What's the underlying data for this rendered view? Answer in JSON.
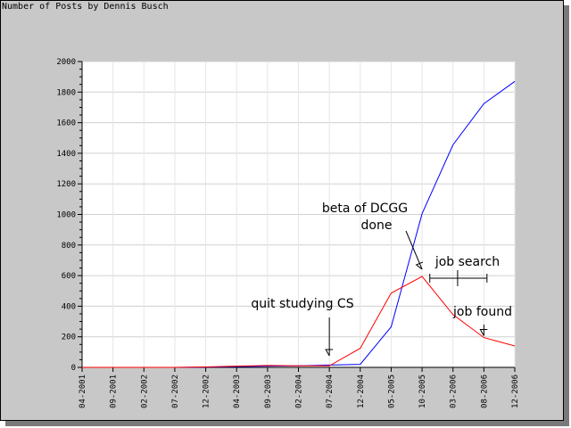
{
  "chart_data": {
    "type": "line",
    "title": "Number of Posts by Dennis Busch",
    "xlabel": "",
    "ylabel": "",
    "ylim": [
      0,
      2000
    ],
    "yticks": [
      0,
      200,
      400,
      600,
      800,
      1000,
      1200,
      1400,
      1600,
      1800,
      2000
    ],
    "categories": [
      "04-2001",
      "09-2001",
      "02-2002",
      "07-2002",
      "12-2002",
      "04-2003",
      "09-2003",
      "02-2004",
      "07-2004",
      "12-2004",
      "05-2005",
      "10-2005",
      "03-2006",
      "08-2006",
      "12-2006"
    ],
    "grid": true,
    "series": [
      {
        "color": "#0000ff",
        "values": [
          0,
          0,
          0,
          0,
          2,
          5,
          8,
          10,
          15,
          20,
          265,
          1005,
          1455,
          1725,
          1870
        ]
      },
      {
        "color": "#ff0000",
        "values": [
          0,
          0,
          0,
          0,
          3,
          8,
          12,
          10,
          10,
          125,
          485,
          595,
          345,
          195,
          140
        ]
      }
    ],
    "annotations": [
      {
        "text": "quit studying CS"
      },
      {
        "text": "beta of DCGG"
      },
      {
        "text": "done"
      },
      {
        "text": "job search"
      },
      {
        "text": "job found"
      }
    ]
  }
}
